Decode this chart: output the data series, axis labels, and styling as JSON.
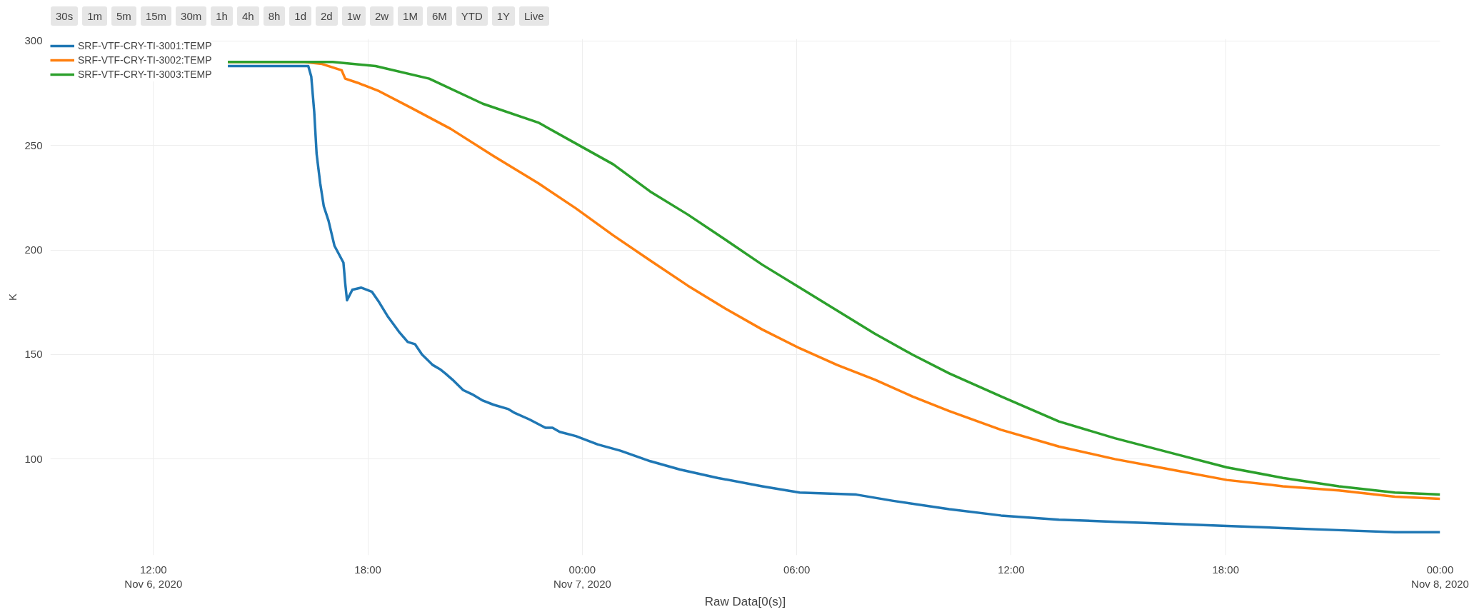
{
  "chart_data": {
    "type": "line",
    "xlabel": "Raw Data[0(s)]",
    "ylabel": "K",
    "annotations": [
      "30s",
      "1m",
      "5m",
      "15m",
      "30m",
      "1h",
      "4h",
      "8h",
      "1d",
      "2d",
      "1w",
      "2w",
      "1M",
      "6M",
      "YTD",
      "1Y",
      "Live"
    ],
    "xlim": [
      "2020-11-06T09:07",
      "2020-11-08T00:00"
    ],
    "xticks": [
      {
        "value": "2020-11-06T12:00",
        "label": "12:00\nNov 6, 2020"
      },
      {
        "value": "2020-11-06T18:00",
        "label": "18:00"
      },
      {
        "value": "2020-11-07T00:00",
        "label": "00:00\nNov 7, 2020"
      },
      {
        "value": "2020-11-07T06:00",
        "label": "06:00"
      },
      {
        "value": "2020-11-07T12:00",
        "label": "12:00"
      },
      {
        "value": "2020-11-07T18:00",
        "label": "18:00"
      },
      {
        "value": "2020-11-08T00:00",
        "label": "00:00\nNov 8, 2020"
      }
    ],
    "ylim": [
      54,
      301
    ],
    "yticks": [
      100,
      150,
      200,
      250,
      300
    ],
    "grid": true,
    "legend": "top left",
    "marker": "none",
    "line_style": "solid",
    "series": [
      {
        "name": "SRF-VTF-CRY-TI-3001:TEMP",
        "color": "#1f77b4",
        "x": [
          "2020-11-06T14:05",
          "2020-11-06T16:20",
          "2020-11-06T16:25",
          "2020-11-06T16:30",
          "2020-11-06T16:34",
          "2020-11-06T16:40",
          "2020-11-06T16:46",
          "2020-11-06T16:54",
          "2020-11-06T17:04",
          "2020-11-06T17:19",
          "2020-11-06T17:22",
          "2020-11-06T17:25",
          "2020-11-06T17:34",
          "2020-11-06T17:49",
          "2020-11-06T18:07",
          "2020-11-06T18:19",
          "2020-11-06T18:34",
          "2020-11-06T18:52",
          "2020-11-06T19:07",
          "2020-11-06T19:19",
          "2020-11-06T19:31",
          "2020-11-06T19:49",
          "2020-11-06T20:01",
          "2020-11-06T20:10",
          "2020-11-06T20:22",
          "2020-11-06T20:40",
          "2020-11-06T20:55",
          "2020-11-06T21:13",
          "2020-11-06T21:31",
          "2020-11-06T21:55",
          "2020-11-06T22:07",
          "2020-11-06T22:31",
          "2020-11-06T22:58",
          "2020-11-06T23:10",
          "2020-11-06T23:22",
          "2020-11-06T23:49",
          "2020-11-07T00:26",
          "2020-11-07T01:04",
          "2020-11-07T01:54",
          "2020-11-07T02:44",
          "2020-11-07T03:47",
          "2020-11-07T05:02",
          "2020-11-07T06:05",
          "2020-11-07T07:40",
          "2020-11-07T08:42",
          "2020-11-07T10:16",
          "2020-11-07T11:43",
          "2020-11-07T13:20",
          "2020-11-07T14:54",
          "2020-11-07T16:28",
          "2020-11-07T18:02",
          "2020-11-07T19:36",
          "2020-11-07T21:10",
          "2020-11-07T22:44",
          "2020-11-08T00:00"
        ],
        "values": [
          288,
          288,
          283,
          266,
          246,
          232,
          221,
          214,
          202,
          194,
          184,
          176,
          181,
          182,
          180,
          175,
          168,
          161,
          156,
          155,
          150,
          145,
          143,
          141,
          138,
          133,
          131,
          128,
          126,
          124,
          122,
          119,
          115,
          115,
          113,
          111,
          107,
          104,
          99,
          95,
          91,
          87,
          84,
          83,
          80,
          76,
          73,
          71,
          70,
          69,
          68,
          67,
          66,
          65,
          65
        ]
      },
      {
        "name": "SRF-VTF-CRY-TI-3002:TEMP",
        "color": "#ff7f0e",
        "x": [
          "2020-11-06T14:05",
          "2020-11-06T16:13",
          "2020-11-06T16:43",
          "2020-11-06T17:16",
          "2020-11-06T17:22",
          "2020-11-06T17:43",
          "2020-11-06T18:19",
          "2020-11-06T19:13",
          "2020-11-06T20:19",
          "2020-11-06T21:31",
          "2020-11-06T22:46",
          "2020-11-06T23:49",
          "2020-11-07T00:52",
          "2020-11-07T01:54",
          "2020-11-07T02:57",
          "2020-11-07T04:00",
          "2020-11-07T05:02",
          "2020-11-07T06:05",
          "2020-11-07T07:08",
          "2020-11-07T08:11",
          "2020-11-07T09:14",
          "2020-11-07T10:16",
          "2020-11-07T11:43",
          "2020-11-07T13:20",
          "2020-11-07T14:54",
          "2020-11-07T16:28",
          "2020-11-07T18:02",
          "2020-11-07T19:36",
          "2020-11-07T21:10",
          "2020-11-07T22:44",
          "2020-11-08T00:00"
        ],
        "values": [
          290,
          290,
          289,
          286,
          282,
          280,
          276,
          268,
          258,
          245,
          232,
          220,
          207,
          195,
          183,
          172,
          162,
          153,
          145,
          138,
          130,
          123,
          114,
          106,
          100,
          95,
          90,
          87,
          85,
          82,
          81
        ]
      },
      {
        "name": "SRF-VTF-CRY-TI-3003:TEMP",
        "color": "#2ca02c",
        "x": [
          "2020-11-06T14:05",
          "2020-11-06T17:01",
          "2020-11-06T18:13",
          "2020-11-06T19:43",
          "2020-11-06T21:13",
          "2020-11-06T22:46",
          "2020-11-06T23:49",
          "2020-11-07T00:52",
          "2020-11-07T01:54",
          "2020-11-07T02:57",
          "2020-11-07T04:00",
          "2020-11-07T05:02",
          "2020-11-07T06:05",
          "2020-11-07T07:08",
          "2020-11-07T08:11",
          "2020-11-07T09:14",
          "2020-11-07T10:16",
          "2020-11-07T11:43",
          "2020-11-07T13:20",
          "2020-11-07T14:54",
          "2020-11-07T16:28",
          "2020-11-07T18:02",
          "2020-11-07T19:36",
          "2020-11-07T21:10",
          "2020-11-07T22:44",
          "2020-11-08T00:00"
        ],
        "values": [
          290,
          290,
          288,
          282,
          270,
          261,
          251,
          241,
          228,
          217,
          205,
          193,
          182,
          171,
          160,
          150,
          141,
          130,
          118,
          110,
          103,
          96,
          91,
          87,
          84,
          83
        ]
      }
    ]
  }
}
